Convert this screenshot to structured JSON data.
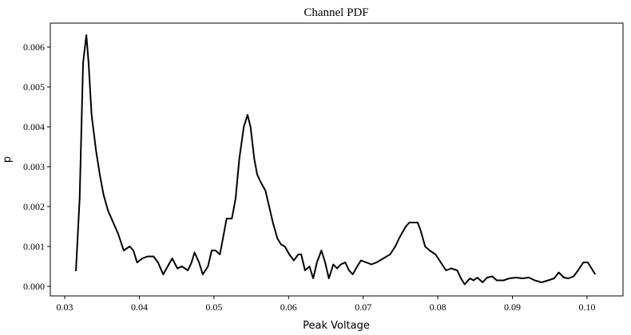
{
  "chart_data": {
    "type": "line",
    "title": "Channel PDF",
    "x_label": "Peak Voltage",
    "y_label": "p",
    "color": "#000000",
    "x": [
      0.0315,
      0.032,
      0.03246,
      0.0329,
      0.0332,
      0.0336,
      0.0342,
      0.0347,
      0.0352,
      0.0358,
      0.0365,
      0.0372,
      0.0379,
      0.0387,
      0.0392,
      0.0397,
      0.0404,
      0.0411,
      0.0419,
      0.0425,
      0.0432,
      0.0438,
      0.0444,
      0.0451,
      0.0457,
      0.0465,
      0.047,
      0.0474,
      0.048,
      0.0485,
      0.0492,
      0.0497,
      0.0502,
      0.0508,
      0.0513,
      0.0517,
      0.0524,
      0.0529,
      0.0534,
      0.054,
      0.0545,
      0.0549,
      0.0554,
      0.0558,
      0.0563,
      0.0569,
      0.0574,
      0.0579,
      0.0585,
      0.059,
      0.0595,
      0.0601,
      0.0607,
      0.0613,
      0.0617,
      0.0622,
      0.0628,
      0.0633,
      0.0638,
      0.0644,
      0.0649,
      0.0654,
      0.066,
      0.0665,
      0.067,
      0.0676,
      0.0681,
      0.0686,
      0.0692,
      0.0697,
      0.0704,
      0.0711,
      0.0718,
      0.0727,
      0.0736,
      0.0743,
      0.0748,
      0.0757,
      0.0762,
      0.0768,
      0.0773,
      0.0777,
      0.0783,
      0.0789,
      0.0797,
      0.0804,
      0.0811,
      0.0818,
      0.0826,
      0.0831,
      0.0836,
      0.0843,
      0.0848,
      0.0853,
      0.086,
      0.0866,
      0.0873,
      0.0879,
      0.0888,
      0.0896,
      0.0905,
      0.0913,
      0.0922,
      0.093,
      0.0939,
      0.0948,
      0.0956,
      0.0962,
      0.0969,
      0.0975,
      0.0982,
      0.0988,
      0.0995,
      0.1001,
      0.1006,
      0.1011
    ],
    "values": [
      0.00038,
      0.0022,
      0.0056,
      0.0063,
      0.0056,
      0.0043,
      0.0034,
      0.0028,
      0.0023,
      0.0019,
      0.0016,
      0.0013,
      0.0009,
      0.001,
      0.0009,
      0.0006,
      0.0007,
      0.00075,
      0.00075,
      0.0006,
      0.0003,
      0.0005,
      0.0007,
      0.00045,
      0.0005,
      0.0004,
      0.0006,
      0.00085,
      0.0006,
      0.0003,
      0.0005,
      0.0009,
      0.0009,
      0.0008,
      0.0013,
      0.0017,
      0.0017,
      0.0022,
      0.0032,
      0.004,
      0.0043,
      0.004,
      0.0032,
      0.0028,
      0.0026,
      0.0024,
      0.002,
      0.0016,
      0.0012,
      0.00105,
      0.001,
      0.0008,
      0.00065,
      0.0008,
      0.0008,
      0.0004,
      0.0005,
      0.0002,
      0.0006,
      0.0009,
      0.0006,
      0.0002,
      0.00055,
      0.00045,
      0.00055,
      0.0006,
      0.0004,
      0.0003,
      0.0005,
      0.00065,
      0.0006,
      0.00055,
      0.0006,
      0.0007,
      0.0008,
      0.001,
      0.0012,
      0.0015,
      0.0016,
      0.0016,
      0.0016,
      0.0014,
      0.001,
      0.0009,
      0.0008,
      0.0006,
      0.0004,
      0.00045,
      0.0004,
      0.0002,
      5e-05,
      0.0002,
      0.00015,
      0.00022,
      0.0001,
      0.00022,
      0.00025,
      0.00015,
      0.00015,
      0.0002,
      0.00022,
      0.0002,
      0.00022,
      0.00015,
      0.0001,
      0.00015,
      0.0002,
      0.00035,
      0.00022,
      0.0002,
      0.00025,
      0.0004,
      0.0006,
      0.0006,
      0.00045,
      0.0003
    ],
    "xlim": [
      0.02807,
      0.10482
    ],
    "ylim": [
      -0.00024,
      0.0066
    ],
    "xticks": [
      0.03,
      0.04,
      0.05,
      0.06,
      0.07,
      0.08,
      0.09,
      {
        "value": 0.1,
        "label": "0.10"
      }
    ],
    "yticks": [
      {
        "value": 0,
        "label": "0.000"
      },
      0.001,
      0.002,
      0.003,
      0.004,
      0.005,
      0.006
    ]
  }
}
